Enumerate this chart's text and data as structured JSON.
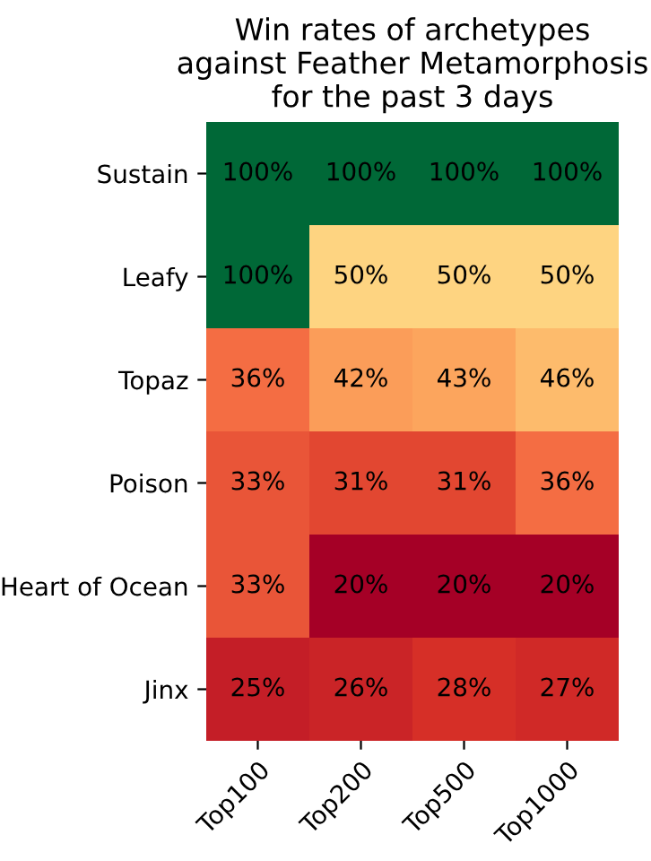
{
  "chart_data": {
    "type": "heatmap",
    "title": "Win rates of archetypes\nagainst Feather Metamorphosis\nfor the past 3 days",
    "categories": [
      "Top100",
      "Top200",
      "Top500",
      "Top1000"
    ],
    "y_categories": [
      "Sustain",
      "Leafy",
      "Topaz",
      "Poison",
      "Heart of Ocean",
      "Jinx"
    ],
    "cells": [
      [
        100,
        100,
        100,
        100
      ],
      [
        100,
        50,
        50,
        50
      ],
      [
        36,
        42,
        43,
        46
      ],
      [
        33,
        31,
        31,
        36
      ],
      [
        33,
        20,
        20,
        20
      ],
      [
        25,
        26,
        28,
        27
      ]
    ],
    "cell_labels": [
      [
        "100%",
        "100%",
        "100%",
        "100%"
      ],
      [
        "100%",
        "50%",
        "50%",
        "50%"
      ],
      [
        "36%",
        "42%",
        "43%",
        "46%"
      ],
      [
        "33%",
        "31%",
        "31%",
        "36%"
      ],
      [
        "33%",
        "20%",
        "20%",
        "20%"
      ],
      [
        "25%",
        "26%",
        "28%",
        "27%"
      ]
    ]
  }
}
